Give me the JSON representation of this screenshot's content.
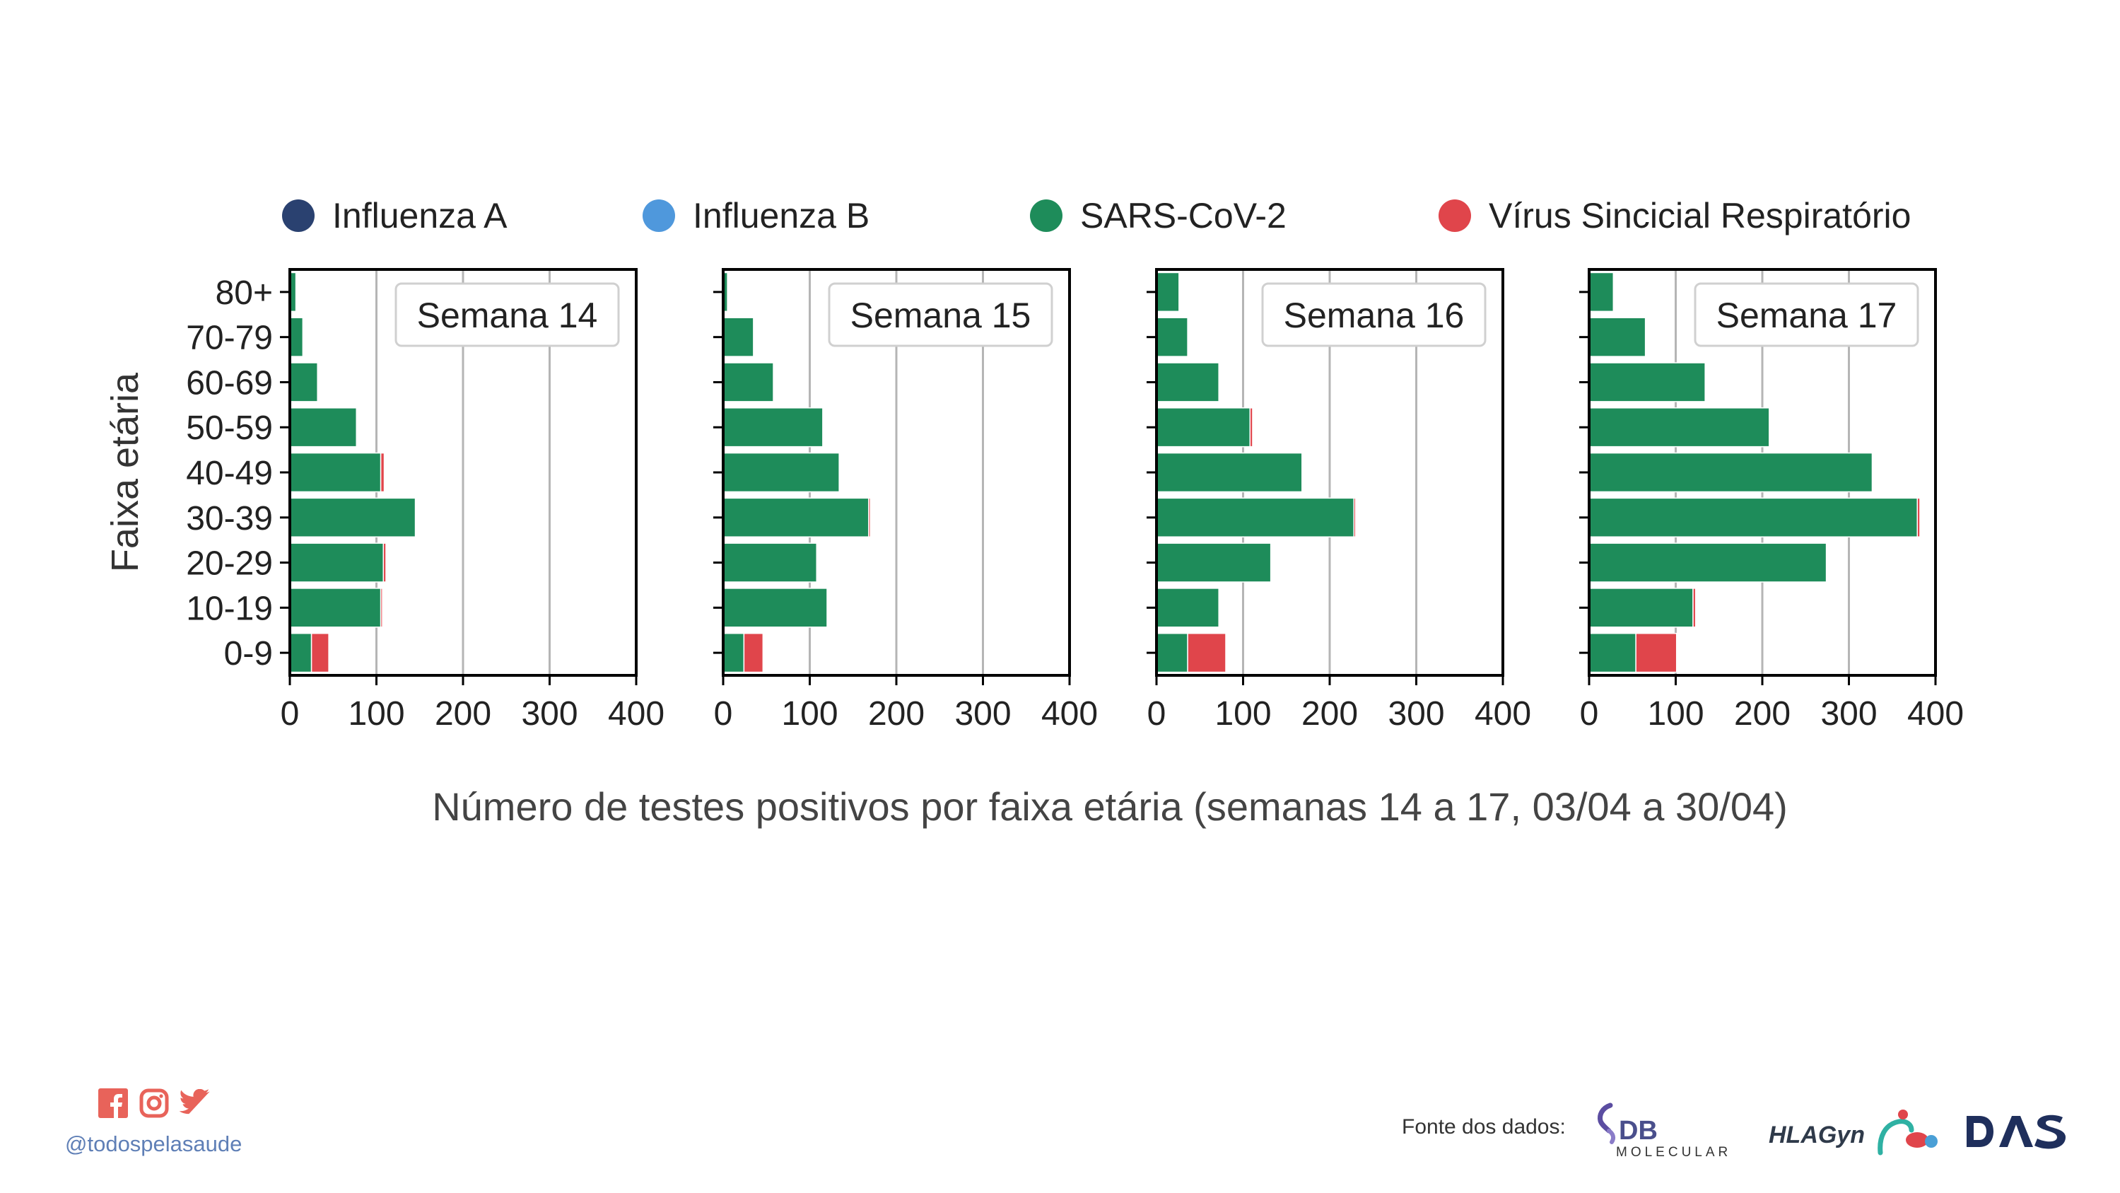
{
  "chart_data": {
    "type": "bar",
    "orientation": "horizontal",
    "stacked": true,
    "ylabel": "Faixa etária",
    "xlabel": "Número de testes positivos por faixa etária (semanas 14 a 17, 03/04 a 30/04)",
    "categories": [
      "0-9",
      "10-19",
      "20-29",
      "30-39",
      "40-49",
      "50-59",
      "60-69",
      "70-79",
      "80+"
    ],
    "xticks": [
      "0",
      "100",
      "200",
      "300",
      "400"
    ],
    "xlim": [
      0,
      400
    ],
    "grid": "vertical",
    "legend_position": "top",
    "legend": [
      {
        "name": "Influenza A",
        "color": "#2a4170"
      },
      {
        "name": "Influenza B",
        "color": "#4f98dc"
      },
      {
        "name": "SARS-CoV-2",
        "color": "#1e8c5a"
      },
      {
        "name": "Vírus Sincicial Respiratório",
        "color": "#e0454b"
      }
    ],
    "panels": [
      {
        "label": "Semana 14",
        "series": [
          {
            "name": "Influenza A",
            "values": [
              0,
              0,
              0,
              0,
              0,
              0,
              0,
              0,
              0
            ]
          },
          {
            "name": "Influenza B",
            "values": [
              0,
              0,
              0,
              0,
              0,
              0,
              0,
              0,
              0
            ]
          },
          {
            "name": "SARS-CoV-2",
            "values": [
              25,
              105,
              108,
              145,
              105,
              77,
              32,
              15,
              7
            ]
          },
          {
            "name": "Vírus Sincicial Respiratório",
            "values": [
              20,
              2,
              3,
              1,
              4,
              1,
              0,
              0,
              0
            ]
          }
        ]
      },
      {
        "label": "Semana 15",
        "series": [
          {
            "name": "Influenza A",
            "values": [
              0,
              0,
              0,
              0,
              0,
              0,
              0,
              0,
              0
            ]
          },
          {
            "name": "Influenza B",
            "values": [
              0,
              0,
              0,
              0,
              0,
              0,
              0,
              0,
              0
            ]
          },
          {
            "name": "SARS-CoV-2",
            "values": [
              24,
              120,
              108,
              168,
              134,
              115,
              58,
              35,
              5
            ]
          },
          {
            "name": "Vírus Sincicial Respiratório",
            "values": [
              22,
              0,
              1,
              2,
              0,
              0,
              0,
              0,
              0
            ]
          }
        ]
      },
      {
        "label": "Semana 16",
        "series": [
          {
            "name": "Influenza A",
            "values": [
              0,
              0,
              0,
              0,
              0,
              0,
              0,
              0,
              0
            ]
          },
          {
            "name": "Influenza B",
            "values": [
              0,
              0,
              0,
              0,
              0,
              0,
              0,
              0,
              0
            ]
          },
          {
            "name": "SARS-CoV-2",
            "values": [
              36,
              72,
              132,
              228,
              168,
              108,
              72,
              36,
              26
            ]
          },
          {
            "name": "Vírus Sincicial Respiratório",
            "values": [
              44,
              0,
              1,
              2,
              0,
              3,
              0,
              0,
              0
            ]
          }
        ]
      },
      {
        "label": "Semana 17",
        "series": [
          {
            "name": "Influenza A",
            "values": [
              0,
              0,
              0,
              0,
              0,
              0,
              0,
              0,
              0
            ]
          },
          {
            "name": "Influenza B",
            "values": [
              0,
              0,
              0,
              0,
              0,
              0,
              0,
              0,
              0
            ]
          },
          {
            "name": "SARS-CoV-2",
            "values": [
              54,
              120,
              274,
              379,
              327,
              208,
              134,
              65,
              28
            ]
          },
          {
            "name": "Vírus Sincicial Respiratório",
            "values": [
              47,
              3,
              1,
              3,
              1,
              0,
              0,
              0,
              0
            ]
          }
        ]
      }
    ]
  },
  "footer": {
    "handle": "@todospelasaude",
    "source_label": "Fonte dos dados:",
    "social_icons": [
      "facebook-icon",
      "instagram-icon",
      "twitter-icon"
    ],
    "social_color": "#e8635a",
    "logos": [
      {
        "name": "db-molecular-logo",
        "text": "DB",
        "subtext": "MOLECULAR"
      },
      {
        "name": "hlagyn-logo",
        "text": "HLAGyn"
      },
      {
        "name": "dasa-logo",
        "text": "DASA"
      }
    ]
  }
}
